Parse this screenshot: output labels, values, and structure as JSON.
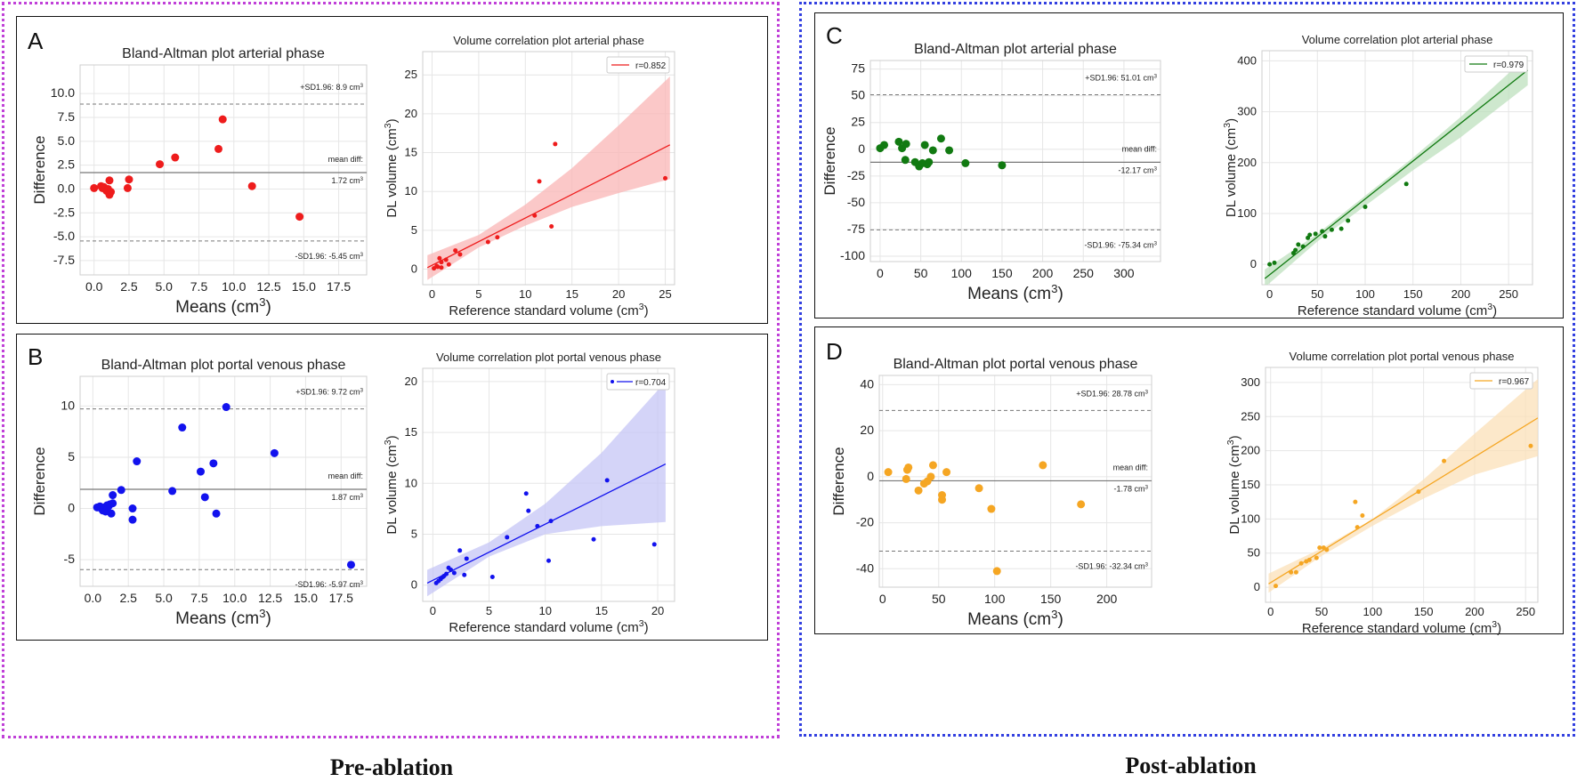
{
  "group_labels": {
    "pre": "Pre-ablation",
    "post": "Post-ablation"
  },
  "panels": {
    "A": "A",
    "B": "B",
    "C": "C",
    "D": "D"
  },
  "chart_data": [
    {
      "id": "A-ba",
      "type": "scatter",
      "title": "Bland-Altman plot arterial phase",
      "xlabel": "Means",
      "xunit": "(cm",
      "ylabel": "Difference",
      "color": "#ee1c1c",
      "xlim": [
        -1,
        19.5
      ],
      "ylim": [
        -9,
        13
      ],
      "xticks": [
        0,
        2.5,
        5,
        7.5,
        10,
        12.5,
        15,
        17.5
      ],
      "xtick_labels": [
        "0.0",
        "2.5",
        "5.0",
        "7.5",
        "10.0",
        "12.5",
        "15.0",
        "17.5"
      ],
      "yticks": [
        -7.5,
        -5,
        -2.5,
        0,
        2.5,
        5,
        7.5,
        10
      ],
      "ytick_labels": [
        "-7.5",
        "-5.0",
        "-2.5",
        "0.0",
        "2.5",
        "5.0",
        "7.5",
        "10.0"
      ],
      "upper_loa": 8.9,
      "upper_label": "+SD1.96: 8.9 cm",
      "mean_diff": 1.72,
      "mean_label1": "mean diff:",
      "mean_label2": "1.72 cm",
      "lower_loa": -5.45,
      "lower_label": "-SD1.96: -5.45 cm",
      "points": [
        [
          0,
          0.1
        ],
        [
          0.5,
          0.3
        ],
        [
          0.6,
          0.1
        ],
        [
          0.7,
          0.2
        ],
        [
          0.8,
          0
        ],
        [
          0.9,
          -0.2
        ],
        [
          1,
          0
        ],
        [
          1.1,
          -0.6
        ],
        [
          1.1,
          0.9
        ],
        [
          1.2,
          -0.3
        ],
        [
          2.4,
          0.1
        ],
        [
          2.5,
          1
        ],
        [
          4.7,
          2.6
        ],
        [
          5.8,
          3.3
        ],
        [
          8.9,
          4.2
        ],
        [
          9.2,
          7.3
        ],
        [
          11.3,
          0.3
        ],
        [
          14.7,
          -2.9
        ]
      ]
    },
    {
      "id": "A-corr",
      "type": "scatter-regression",
      "title": "Volume correlation plot arterial phase",
      "xlabel": "Reference standard volume",
      "ylabel": "DL volume",
      "color": "#ee1c1c",
      "band": "#f9b5b5",
      "legend": "r=0.852",
      "legend_marker": "line",
      "xlim": [
        -1,
        26
      ],
      "ylim": [
        -2,
        28
      ],
      "xticks": [
        0,
        5,
        10,
        15,
        20,
        25
      ],
      "xtick_labels": [
        "0",
        "5",
        "10",
        "15",
        "20",
        "25"
      ],
      "yticks": [
        0,
        5,
        10,
        15,
        20,
        25
      ],
      "ytick_labels": [
        "0",
        "5",
        "10",
        "15",
        "20",
        "25"
      ],
      "fit": [
        [
          -0.5,
          0.2
        ],
        [
          25.5,
          16
        ]
      ],
      "band_upper": [
        [
          -0.5,
          1.8
        ],
        [
          5,
          4.4
        ],
        [
          10,
          8.3
        ],
        [
          15,
          13
        ],
        [
          20,
          18.5
        ],
        [
          25.5,
          24.8
        ]
      ],
      "band_lower": [
        [
          -0.5,
          -1.4
        ],
        [
          5,
          2.8
        ],
        [
          10,
          5.6
        ],
        [
          15,
          8
        ],
        [
          20,
          9.8
        ],
        [
          25.5,
          11.6
        ]
      ],
      "points": [
        [
          0.2,
          0.1
        ],
        [
          0.5,
          0.4
        ],
        [
          0.6,
          0.3
        ],
        [
          0.8,
          1.4
        ],
        [
          1,
          0.9
        ],
        [
          1,
          0.2
        ],
        [
          1.5,
          1.2
        ],
        [
          1.8,
          0.6
        ],
        [
          2.5,
          2.4
        ],
        [
          3,
          1.9
        ],
        [
          6,
          3.5
        ],
        [
          7,
          4.1
        ],
        [
          11,
          6.9
        ],
        [
          11.5,
          11.3
        ],
        [
          12.8,
          5.5
        ],
        [
          13.2,
          16.1
        ],
        [
          25,
          11.7
        ]
      ]
    },
    {
      "id": "B-ba",
      "type": "scatter",
      "title": "Bland-Altman plot portal venous phase",
      "xlabel": "Means",
      "xunit": "(cm",
      "ylabel": "Difference",
      "color": "#1212ee",
      "xlim": [
        -0.9,
        19.3
      ],
      "ylim": [
        -7.6,
        12.9
      ],
      "xticks": [
        0,
        2.5,
        5,
        7.5,
        10,
        12.5,
        15,
        17.5
      ],
      "xtick_labels": [
        "0.0",
        "2.5",
        "5.0",
        "7.5",
        "10.0",
        "12.5",
        "15.0",
        "17.5"
      ],
      "yticks": [
        -5,
        0,
        5,
        10
      ],
      "ytick_labels": [
        "-5",
        "0",
        "5",
        "10"
      ],
      "upper_loa": 9.72,
      "upper_label": "+SD1.96: 9.72 cm",
      "mean_diff": 1.87,
      "mean_label1": "mean diff:",
      "mean_label2": "1.87 cm",
      "lower_loa": -5.97,
      "lower_label": "-SD1.96: -5.97 cm",
      "points": [
        [
          0.3,
          0.1
        ],
        [
          0.5,
          0.2
        ],
        [
          0.6,
          0
        ],
        [
          0.7,
          -0.2
        ],
        [
          0.8,
          0.1
        ],
        [
          0.9,
          -0.3
        ],
        [
          1,
          0.3
        ],
        [
          1.1,
          0.2
        ],
        [
          1.2,
          0.4
        ],
        [
          1.3,
          -0.5
        ],
        [
          1.4,
          0.5
        ],
        [
          1.4,
          1.3
        ],
        [
          2,
          1.8
        ],
        [
          2.8,
          0
        ],
        [
          2.8,
          -1.1
        ],
        [
          3.1,
          4.6
        ],
        [
          5.6,
          1.7
        ],
        [
          6.3,
          7.9
        ],
        [
          7.6,
          3.6
        ],
        [
          7.9,
          1.1
        ],
        [
          8.5,
          4.4
        ],
        [
          8.7,
          -0.5
        ],
        [
          9.4,
          9.9
        ],
        [
          12.8,
          5.4
        ],
        [
          18.2,
          -5.5
        ]
      ]
    },
    {
      "id": "B-corr",
      "type": "scatter-regression",
      "title": "Volume correlation plot portal venous phase",
      "xlabel": "Reference standard volume",
      "ylabel": "DL volume",
      "color": "#1212ee",
      "band": "#c5c5f5",
      "legend": "r=0.704",
      "legend_marker": "dot-line",
      "xlim": [
        -0.9,
        21.5
      ],
      "ylim": [
        -1.6,
        21.3
      ],
      "xticks": [
        0,
        5,
        10,
        15,
        20
      ],
      "xtick_labels": [
        "0",
        "5",
        "10",
        "15",
        "20"
      ],
      "yticks": [
        0,
        5,
        10,
        15,
        20
      ],
      "ytick_labels": [
        "0",
        "5",
        "10",
        "15",
        "20"
      ],
      "fit": [
        [
          -0.5,
          0.2
        ],
        [
          20.7,
          11.9
        ]
      ],
      "band_upper": [
        [
          -0.5,
          1.5
        ],
        [
          5,
          4.2
        ],
        [
          10,
          8
        ],
        [
          15,
          13
        ],
        [
          20.7,
          20
        ]
      ],
      "band_lower": [
        [
          -0.5,
          -1.1
        ],
        [
          5,
          2.8
        ],
        [
          10,
          5
        ],
        [
          15,
          5.8
        ],
        [
          20.7,
          6.2
        ]
      ],
      "points": [
        [
          0.3,
          0.2
        ],
        [
          0.5,
          0.4
        ],
        [
          0.7,
          0.6
        ],
        [
          0.9,
          0.8
        ],
        [
          1,
          0.9
        ],
        [
          1.2,
          1.1
        ],
        [
          1.4,
          1.7
        ],
        [
          1.6,
          1.5
        ],
        [
          1.9,
          1.2
        ],
        [
          2.4,
          3.4
        ],
        [
          2.8,
          1
        ],
        [
          3,
          2.6
        ],
        [
          5.3,
          0.8
        ],
        [
          6.6,
          4.7
        ],
        [
          8.3,
          9
        ],
        [
          8.5,
          7.3
        ],
        [
          9.3,
          5.8
        ],
        [
          10.5,
          6.3
        ],
        [
          10.3,
          2.4
        ],
        [
          14.3,
          4.5
        ],
        [
          15.5,
          10.3
        ],
        [
          19.7,
          4
        ]
      ]
    },
    {
      "id": "C-ba",
      "type": "scatter",
      "title": "Bland-Altman plot arterial phase",
      "xlabel": "Means",
      "xunit": "(cm",
      "ylabel": "Difference",
      "color": "#117a11",
      "xlim": [
        -12,
        345
      ],
      "ylim": [
        -105,
        83
      ],
      "xticks": [
        0,
        50,
        100,
        150,
        200,
        250,
        300
      ],
      "xtick_labels": [
        "0",
        "50",
        "100",
        "150",
        "200",
        "250",
        "300"
      ],
      "yticks": [
        -100,
        -75,
        -50,
        -25,
        0,
        25,
        50,
        75
      ],
      "ytick_labels": [
        "-100",
        "-75",
        "-50",
        "-25",
        "0",
        "25",
        "50",
        "75"
      ],
      "upper_loa": 51.01,
      "upper_label": "+SD1.96: 51.01 cm",
      "mean_diff": -12.17,
      "mean_label1": "mean diff:",
      "mean_label2": "-12.17 cm",
      "lower_loa": -75.34,
      "lower_label": "-SD1.96: -75.34 cm",
      "points": [
        [
          0,
          1
        ],
        [
          5,
          4
        ],
        [
          23,
          7
        ],
        [
          27,
          1
        ],
        [
          32,
          5
        ],
        [
          31,
          -10
        ],
        [
          43,
          -12
        ],
        [
          48,
          -16
        ],
        [
          52,
          -13
        ],
        [
          55,
          4
        ],
        [
          58,
          -14
        ],
        [
          60,
          -12
        ],
        [
          65,
          -1
        ],
        [
          75,
          10
        ],
        [
          85,
          -1
        ],
        [
          105,
          -13
        ],
        [
          150,
          -15
        ]
      ]
    },
    {
      "id": "C-corr",
      "type": "scatter-regression",
      "title": "Volume correlation plot arterial phase",
      "xlabel": "Reference standard volume",
      "ylabel": "DL volume",
      "color": "#117a11",
      "band": "#bde0bd",
      "legend": "r=0.979",
      "legend_marker": "line",
      "xlim": [
        -8,
        275
      ],
      "ylim": [
        -40,
        420
      ],
      "xticks": [
        0,
        50,
        100,
        150,
        200,
        250
      ],
      "xtick_labels": [
        "0",
        "50",
        "100",
        "150",
        "200",
        "250"
      ],
      "yticks": [
        0,
        100,
        200,
        300,
        400
      ],
      "ytick_labels": [
        "0",
        "100",
        "200",
        "300",
        "400"
      ],
      "fit": [
        [
          -5,
          -28
        ],
        [
          270,
          382
        ]
      ],
      "band_upper": [
        [
          -5,
          -10
        ],
        [
          50,
          60
        ],
        [
          100,
          135
        ],
        [
          150,
          210
        ],
        [
          200,
          290
        ],
        [
          270,
          410
        ]
      ],
      "band_lower": [
        [
          -5,
          -45
        ],
        [
          50,
          45
        ],
        [
          100,
          115
        ],
        [
          150,
          185
        ],
        [
          200,
          250
        ],
        [
          270,
          352
        ]
      ],
      "points": [
        [
          0,
          0
        ],
        [
          5,
          3
        ],
        [
          25,
          22
        ],
        [
          27,
          28
        ],
        [
          30,
          39
        ],
        [
          35,
          35
        ],
        [
          40,
          52
        ],
        [
          42,
          58
        ],
        [
          48,
          60
        ],
        [
          55,
          65
        ],
        [
          58,
          55
        ],
        [
          65,
          68
        ],
        [
          75,
          70
        ],
        [
          82,
          86
        ],
        [
          100,
          113
        ],
        [
          143,
          158
        ],
        [
          262,
          400
        ]
      ]
    },
    {
      "id": "D-ba",
      "type": "scatter",
      "title": "Bland-Altman plot portal venous phase",
      "xlabel": "Means",
      "xunit": "(cm",
      "ylabel": "Difference",
      "color": "#f5a623",
      "xlim": [
        -3,
        240
      ],
      "ylim": [
        -48,
        44
      ],
      "xticks": [
        0,
        50,
        100,
        150,
        200
      ],
      "xtick_labels": [
        "0",
        "50",
        "100",
        "150",
        "200"
      ],
      "yticks": [
        -40,
        -20,
        0,
        20,
        40
      ],
      "ytick_labels": [
        "-40",
        "-20",
        "0",
        "20",
        "40"
      ],
      "upper_loa": 28.78,
      "upper_label": "+SD1.96: 28.78 cm",
      "mean_diff": -1.78,
      "mean_label1": "mean diff:",
      "mean_label2": "-1.78 cm",
      "lower_loa": -32.34,
      "lower_label": "-SD1.96: -32.34 cm",
      "points": [
        [
          5,
          2
        ],
        [
          21,
          -1
        ],
        [
          22,
          3
        ],
        [
          23,
          4
        ],
        [
          32,
          -6
        ],
        [
          37,
          -3
        ],
        [
          40,
          -2
        ],
        [
          43,
          0
        ],
        [
          45,
          5
        ],
        [
          53,
          -10
        ],
        [
          53,
          -8
        ],
        [
          57,
          2
        ],
        [
          86,
          -5
        ],
        [
          97,
          -14
        ],
        [
          102,
          -41
        ],
        [
          143,
          5
        ],
        [
          177,
          -12
        ]
      ]
    },
    {
      "id": "D-corr",
      "type": "scatter-regression",
      "title": "Volume correlation plot portal venous phase",
      "xlabel": "Reference standard volume",
      "ylabel": "DL volume",
      "color": "#f5a623",
      "band": "#fbe0b8",
      "legend": "r=0.967",
      "legend_marker": "line",
      "xlim": [
        -5,
        262
      ],
      "ylim": [
        -22,
        322
      ],
      "xticks": [
        0,
        50,
        100,
        150,
        200,
        250
      ],
      "xtick_labels": [
        "0",
        "50",
        "100",
        "150",
        "200",
        "250"
      ],
      "yticks": [
        0,
        50,
        100,
        150,
        200,
        250,
        300
      ],
      "ytick_labels": [
        "0",
        "50",
        "100",
        "150",
        "200",
        "250",
        "300"
      ],
      "fit": [
        [
          -2,
          5
        ],
        [
          262,
          248
        ]
      ],
      "band_upper": [
        [
          -2,
          20
        ],
        [
          50,
          57
        ],
        [
          100,
          100
        ],
        [
          150,
          158
        ],
        [
          200,
          225
        ],
        [
          262,
          305
        ]
      ],
      "band_lower": [
        [
          -2,
          -8
        ],
        [
          50,
          46
        ],
        [
          100,
          90
        ],
        [
          150,
          130
        ],
        [
          200,
          165
        ],
        [
          262,
          192
        ]
      ],
      "points": [
        [
          5,
          2
        ],
        [
          20,
          22
        ],
        [
          25,
          22
        ],
        [
          30,
          35
        ],
        [
          35,
          38
        ],
        [
          38,
          40
        ],
        [
          45,
          43
        ],
        [
          48,
          58
        ],
        [
          52,
          58
        ],
        [
          55,
          55
        ],
        [
          83,
          125
        ],
        [
          85,
          88
        ],
        [
          90,
          105
        ],
        [
          145,
          140
        ],
        [
          170,
          185
        ],
        [
          255,
          207
        ]
      ]
    }
  ]
}
